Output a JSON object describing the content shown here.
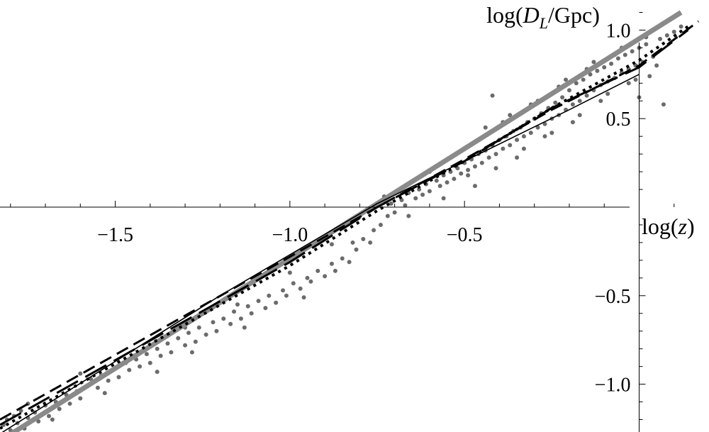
{
  "chart_data": {
    "type": "scatter",
    "title": "",
    "xlabel": {
      "prefix": "log(",
      "var": "z",
      "suffix": ")"
    },
    "ylabel": {
      "prefix": "log(",
      "var": "D",
      "sub": "L",
      "suffix": "/Gpc)"
    },
    "xlim": [
      -1.83,
      0.2
    ],
    "ylim": [
      -1.27,
      1.17
    ],
    "xticks": [
      {
        "value": -1.5,
        "label": "−1.5"
      },
      {
        "value": -1.0,
        "label": "−1.0"
      },
      {
        "value": -0.5,
        "label": "−0.5"
      }
    ],
    "yticks": [
      {
        "value": 1.0,
        "label": "1.0"
      },
      {
        "value": 0.5,
        "label": "0.5"
      },
      {
        "value": -0.5,
        "label": "−0.5"
      },
      {
        "value": -1.0,
        "label": "−1.0"
      }
    ],
    "grid": false,
    "series": [
      {
        "style": "gray-thick",
        "color": "#8a8a8a",
        "points": [
          [
            -1.83,
            -1.32
          ],
          [
            0.12,
            1.1
          ]
        ]
      },
      {
        "style": "solid",
        "color": "#000000",
        "points": [
          [
            -1.83,
            -1.28
          ],
          [
            -1.2,
            -0.5
          ],
          [
            -0.75,
            0.02
          ],
          [
            -0.5,
            0.26
          ],
          [
            -0.2,
            0.55
          ],
          [
            0.0,
            0.75
          ]
        ]
      },
      {
        "style": "dashed",
        "color": "#000000",
        "points": [
          [
            -1.83,
            -1.2
          ],
          [
            -1.0,
            -0.28
          ],
          [
            -0.75,
            0.0
          ],
          [
            -0.5,
            0.27
          ],
          [
            -0.25,
            0.55
          ],
          [
            0.0,
            0.8
          ],
          [
            0.17,
            1.05
          ]
        ]
      },
      {
        "style": "dotted",
        "color": "#000000",
        "points": [
          [
            -1.83,
            -1.25
          ],
          [
            -1.0,
            -0.33
          ],
          [
            -0.75,
            -0.02
          ],
          [
            -0.5,
            0.26
          ],
          [
            -0.25,
            0.56
          ],
          [
            0.0,
            0.83
          ],
          [
            0.14,
            1.02
          ]
        ]
      },
      {
        "style": "long-dashed",
        "color": "#000000",
        "points": [
          [
            -1.83,
            -1.23
          ],
          [
            -1.0,
            -0.31
          ],
          [
            -0.75,
            0.0
          ],
          [
            -0.5,
            0.26
          ],
          [
            -0.25,
            0.56
          ],
          [
            0.0,
            0.79
          ],
          [
            0.14,
            1.0
          ]
        ]
      }
    ],
    "scatter": {
      "color": "#6b6b6b",
      "points": [
        [
          -1.82,
          -1.23
        ],
        [
          -1.81,
          -1.2
        ],
        [
          -1.8,
          -1.26
        ],
        [
          -1.79,
          -1.18
        ],
        [
          -1.78,
          -1.22
        ],
        [
          -1.77,
          -1.15
        ],
        [
          -1.76,
          -1.25
        ],
        [
          -1.75,
          -1.19
        ],
        [
          -1.73,
          -1.16
        ],
        [
          -1.72,
          -1.21
        ],
        [
          -1.7,
          -1.12
        ],
        [
          -1.69,
          -1.18
        ],
        [
          -1.67,
          -1.1
        ],
        [
          -1.66,
          -1.14
        ],
        [
          -1.64,
          -1.06
        ],
        [
          -1.63,
          -1.11
        ],
        [
          -1.61,
          -1.04
        ],
        [
          -1.6,
          -1.08
        ],
        [
          -1.58,
          -1.01
        ],
        [
          -1.57,
          -0.97
        ],
        [
          -1.55,
          -1.02
        ],
        [
          -1.54,
          -0.95
        ],
        [
          -1.52,
          -0.98
        ],
        [
          -1.5,
          -0.91
        ],
        [
          -1.49,
          -0.96
        ],
        [
          -1.47,
          -0.88
        ],
        [
          -1.46,
          -0.92
        ],
        [
          -1.44,
          -0.86
        ],
        [
          -1.43,
          -0.9
        ],
        [
          -1.41,
          -0.83
        ],
        [
          -1.4,
          -0.88
        ],
        [
          -1.38,
          -0.8
        ],
        [
          -1.37,
          -0.84
        ],
        [
          -1.35,
          -0.77
        ],
        [
          -1.34,
          -0.82
        ],
        [
          -1.32,
          -0.74
        ],
        [
          -1.3,
          -0.78
        ],
        [
          -1.29,
          -0.71
        ],
        [
          -1.27,
          -0.76
        ],
        [
          -1.26,
          -0.68
        ],
        [
          -1.24,
          -0.72
        ],
        [
          -1.22,
          -0.65
        ],
        [
          -1.21,
          -0.7
        ],
        [
          -1.19,
          -0.63
        ],
        [
          -1.17,
          -0.66
        ],
        [
          -1.16,
          -0.59
        ],
        [
          -1.14,
          -0.63
        ],
        [
          -1.12,
          -0.56
        ],
        [
          -1.11,
          -0.6
        ],
        [
          -1.09,
          -0.53
        ],
        [
          -1.07,
          -0.57
        ],
        [
          -1.06,
          -0.5
        ],
        [
          -1.04,
          -0.54
        ],
        [
          -1.02,
          -0.47
        ],
        [
          -1.01,
          -0.5
        ],
        [
          -0.99,
          -0.43
        ],
        [
          -0.97,
          -0.46
        ],
        [
          -0.95,
          -0.4
        ],
        [
          -0.94,
          -0.42
        ],
        [
          -0.92,
          -0.36
        ],
        [
          -0.9,
          -0.39
        ],
        [
          -0.88,
          -0.32
        ],
        [
          -0.87,
          -0.36
        ],
        [
          -0.85,
          -0.29
        ],
        [
          -0.83,
          -0.31
        ],
        [
          -0.82,
          -0.2
        ],
        [
          -0.81,
          -0.24
        ],
        [
          -0.79,
          -0.18
        ],
        [
          -0.77,
          -0.2
        ],
        [
          -0.76,
          -0.13
        ],
        [
          -0.74,
          -0.1
        ],
        [
          -0.73,
          0.06
        ],
        [
          -0.72,
          -0.05
        ],
        [
          -0.71,
          0.02
        ],
        [
          -0.7,
          -0.03
        ],
        [
          -0.68,
          0.04
        ],
        [
          -0.67,
          0.01
        ],
        [
          -0.66,
          0.08
        ],
        [
          -0.64,
          0.05
        ],
        [
          -0.63,
          0.1
        ],
        [
          -0.62,
          0.07
        ],
        [
          -0.61,
          0.13
        ],
        [
          -0.6,
          0.09
        ],
        [
          -0.58,
          0.15
        ],
        [
          -0.57,
          0.12
        ],
        [
          -0.56,
          0.18
        ],
        [
          -0.55,
          0.14
        ],
        [
          -0.54,
          0.2
        ],
        [
          -0.53,
          0.16
        ],
        [
          -0.52,
          0.22
        ],
        [
          -0.51,
          0.19
        ],
        [
          -0.5,
          0.25
        ],
        [
          -0.49,
          0.21
        ],
        [
          -0.48,
          0.27
        ],
        [
          -0.47,
          0.23
        ],
        [
          -0.46,
          0.3
        ],
        [
          -0.45,
          0.25
        ],
        [
          -0.44,
          0.32
        ],
        [
          -0.43,
          0.28
        ],
        [
          -0.42,
          0.35
        ],
        [
          -0.42,
          0.63
        ],
        [
          -0.41,
          0.3
        ],
        [
          -0.4,
          0.38
        ],
        [
          -0.39,
          0.33
        ],
        [
          -0.38,
          0.4
        ],
        [
          -0.37,
          0.35
        ],
        [
          -0.36,
          0.43
        ],
        [
          -0.35,
          0.38
        ],
        [
          -0.34,
          0.45
        ],
        [
          -0.33,
          0.4
        ],
        [
          -0.32,
          0.48
        ],
        [
          -0.31,
          0.42
        ],
        [
          -0.3,
          0.5
        ],
        [
          -0.29,
          0.45
        ],
        [
          -0.28,
          0.53
        ],
        [
          -0.27,
          0.47
        ],
        [
          -0.26,
          0.56
        ],
        [
          -0.25,
          0.5
        ],
        [
          -0.24,
          0.59
        ],
        [
          -0.23,
          0.52
        ],
        [
          -0.22,
          0.62
        ],
        [
          -0.21,
          0.55
        ],
        [
          -0.2,
          0.66
        ],
        [
          -0.19,
          0.58
        ],
        [
          -0.18,
          0.7
        ],
        [
          -0.17,
          0.6
        ],
        [
          -0.16,
          0.72
        ],
        [
          -0.15,
          0.63
        ],
        [
          -0.14,
          0.75
        ],
        [
          -0.13,
          0.66
        ],
        [
          -0.12,
          0.77
        ],
        [
          -0.11,
          0.69
        ],
        [
          -0.1,
          0.79
        ],
        [
          -0.09,
          0.71
        ],
        [
          -0.08,
          0.81
        ],
        [
          -0.07,
          0.73
        ],
        [
          -0.06,
          0.84
        ],
        [
          -0.05,
          0.76
        ],
        [
          -0.04,
          0.86
        ],
        [
          -0.03,
          0.78
        ],
        [
          -0.02,
          0.88
        ],
        [
          -0.01,
          0.8
        ],
        [
          0.0,
          0.9
        ],
        [
          0.01,
          0.82
        ],
        [
          0.02,
          0.92
        ],
        [
          0.04,
          0.85
        ],
        [
          0.06,
          0.95
        ],
        [
          0.08,
          0.97
        ],
        [
          0.1,
          0.99
        ],
        [
          0.12,
          1.02
        ],
        [
          -0.49,
          0.18
        ],
        [
          -0.44,
          0.45
        ],
        [
          -0.39,
          0.48
        ],
        [
          -0.35,
          0.28
        ],
        [
          -0.31,
          0.58
        ],
        [
          -0.27,
          0.4
        ],
        [
          -0.23,
          0.68
        ],
        [
          -0.19,
          0.48
        ],
        [
          -0.15,
          0.78
        ],
        [
          -0.11,
          0.6
        ],
        [
          -0.07,
          0.86
        ],
        [
          -0.03,
          0.7
        ],
        [
          0.0,
          0.62
        ],
        [
          0.03,
          0.74
        ],
        [
          0.07,
          0.58
        ],
        [
          -0.6,
          0.2
        ],
        [
          -0.66,
          -0.05
        ],
        [
          -0.56,
          0.05
        ],
        [
          -0.47,
          0.12
        ],
        [
          -0.41,
          0.22
        ],
        [
          -0.37,
          0.52
        ],
        [
          -0.33,
          0.33
        ],
        [
          -0.29,
          0.6
        ],
        [
          -0.25,
          0.42
        ],
        [
          -0.21,
          0.72
        ],
        [
          -0.17,
          0.52
        ],
        [
          -0.13,
          0.82
        ],
        [
          -0.09,
          0.64
        ],
        [
          -0.05,
          0.9
        ],
        [
          -0.01,
          0.72
        ],
        [
          0.02,
          0.96
        ],
        [
          0.05,
          0.8
        ],
        [
          -0.88,
          -0.21
        ],
        [
          -1.0,
          -0.37
        ],
        [
          -1.15,
          -0.55
        ],
        [
          -1.3,
          -0.68
        ],
        [
          -1.45,
          -0.84
        ],
        [
          -1.6,
          -0.94
        ],
        [
          -1.75,
          -1.11
        ],
        [
          -1.28,
          -0.82
        ],
        [
          -1.13,
          -0.68
        ],
        [
          -0.96,
          -0.51
        ],
        [
          -1.38,
          -0.93
        ],
        [
          -1.53,
          -1.05
        ],
        [
          -1.68,
          -1.2
        ]
      ]
    }
  }
}
